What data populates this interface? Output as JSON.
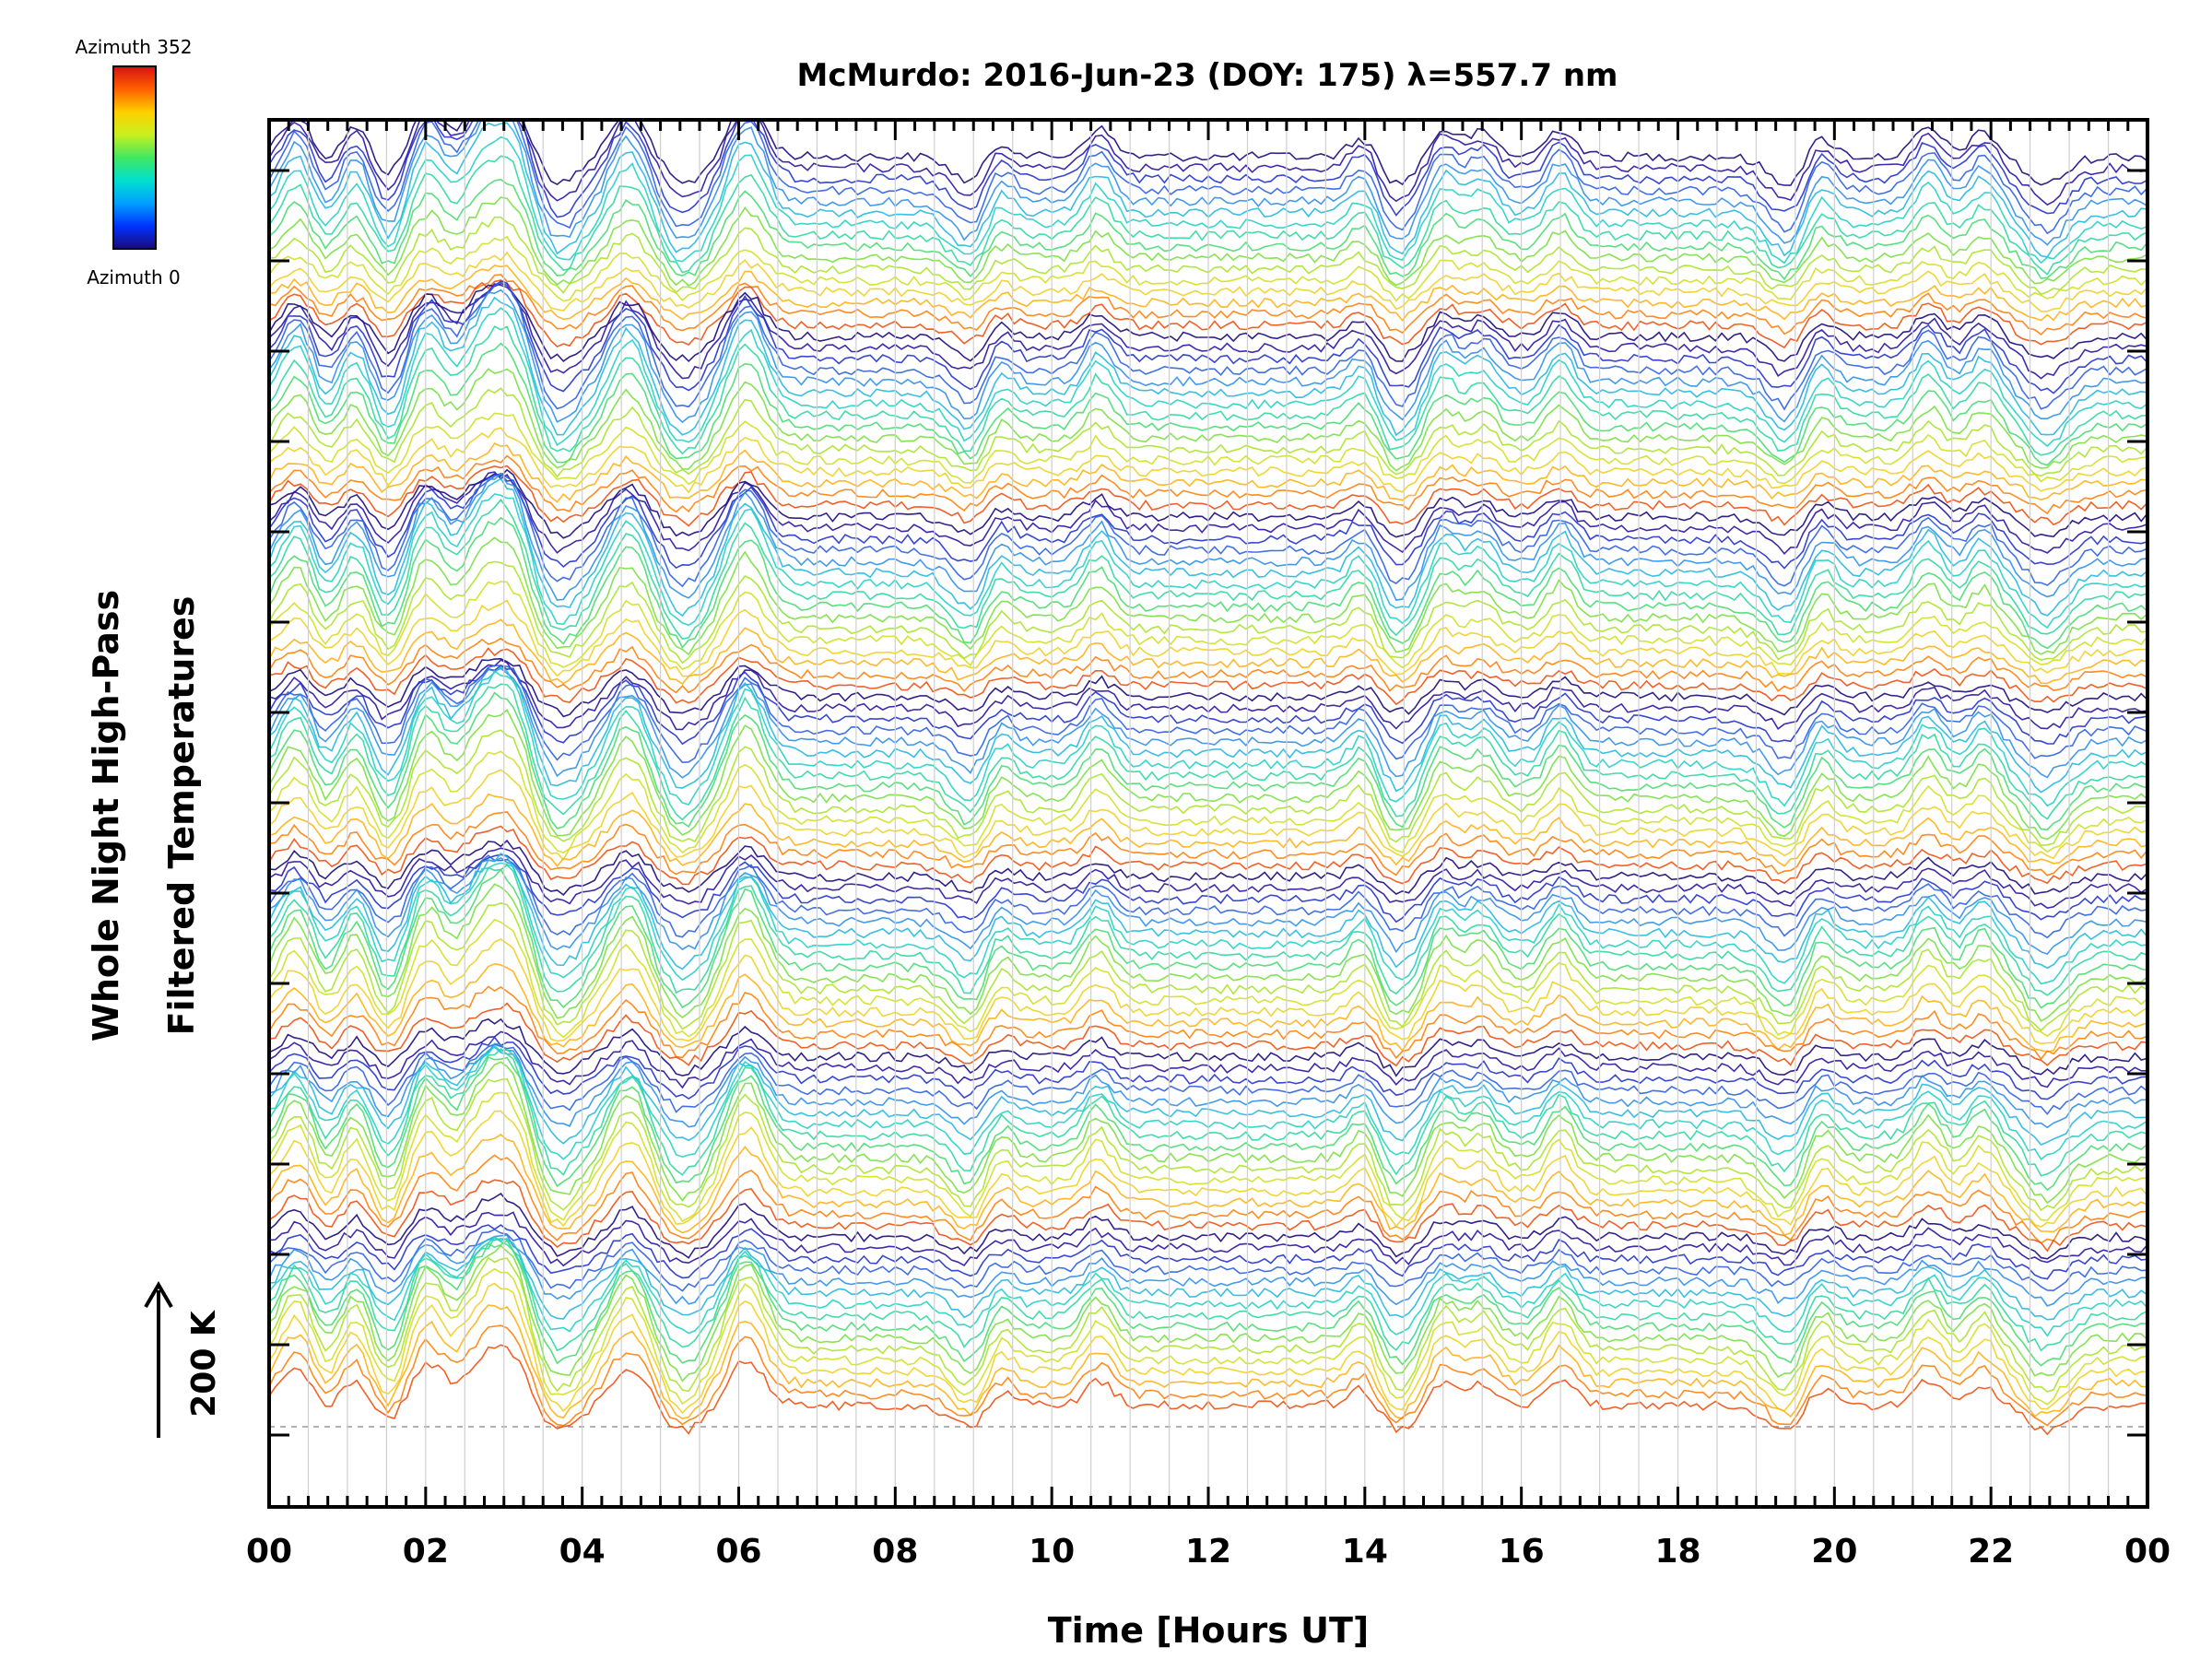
{
  "chart_data": {
    "type": "line",
    "title": "McMurdo: 2016-Jun-23 (DOY: 175) λ=557.7 nm",
    "xlabel": "Time [Hours UT]",
    "ylabel_line1": "Whole Night High-Pass",
    "ylabel_line2": "Filtered Temperatures",
    "x_tick_labels": [
      "00",
      "02",
      "04",
      "06",
      "08",
      "10",
      "12",
      "14",
      "16",
      "18",
      "20",
      "22",
      "00"
    ],
    "xlim": [
      0,
      24
    ],
    "scale_label": "200 K",
    "colorbar": {
      "top_label": "Azimuth  352",
      "bottom_label": "Azimuth  0",
      "colors": [
        "#1a0a7a",
        "#0033ff",
        "#00a0ff",
        "#00e0d0",
        "#40e860",
        "#c8f020",
        "#ffd000",
        "#ff6000",
        "#d81010"
      ]
    },
    "series_colors": [
      "#1a0a7a",
      "#2a14a0",
      "#2233cc",
      "#2e60e0",
      "#2f8fe8",
      "#22b8e0",
      "#22d0c8",
      "#2cd8a0",
      "#48dc70",
      "#78e040",
      "#a8e428",
      "#d0e020",
      "#f0d020",
      "#ffb010",
      "#ff8008",
      "#f05010"
    ],
    "groups": 7,
    "lines_per_group": 16,
    "baseline_hours": [
      0,
      24
    ],
    "event_hours": [
      0.4,
      1.1,
      2.0,
      2.7,
      3.1,
      4.6,
      6.1,
      9.3,
      10.6,
      14.0,
      15.0,
      15.5,
      16.5,
      19.8,
      21.2,
      21.9
    ]
  }
}
